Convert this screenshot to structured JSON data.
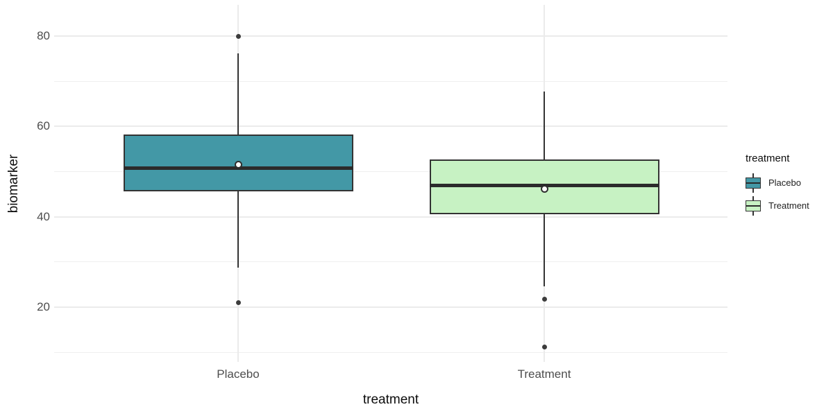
{
  "chart_data": {
    "type": "boxplot",
    "title": "",
    "xlabel": "treatment",
    "ylabel": "biomarker",
    "categories": [
      "Placebo",
      "Treatment"
    ],
    "y_axis": {
      "major_ticks": [
        20,
        40,
        60,
        80
      ],
      "minor_ticks": [
        10,
        30,
        50,
        70
      ],
      "range_shown": [
        8,
        87
      ],
      "grid": "on"
    },
    "series": [
      {
        "name": "Placebo",
        "fill": "#4398a6",
        "whisker_low": 28.7,
        "q1": 45.6,
        "median": 50.8,
        "mean": 51.5,
        "q3": 58.2,
        "whisker_high": 76.1,
        "outliers": [
          80,
          21
        ]
      },
      {
        "name": "Treatment",
        "fill": "#c7f2c3",
        "whisker_low": 24.6,
        "q1": 40.6,
        "median": 46.9,
        "mean": 46.1,
        "q3": 52.7,
        "whisker_high": 67.7,
        "outliers": [
          21.7,
          11.2
        ]
      }
    ],
    "legend": {
      "title": "treatment",
      "entries": [
        "Placebo",
        "Treatment"
      ],
      "position": "right"
    },
    "style_colors": {
      "background": "#ffffff",
      "grid_major": "#ebebeb",
      "grid_minor": "#efefef",
      "box_stroke": "#333333",
      "outlier": "#3c3c3c",
      "mean_fill": "#ffffff",
      "axis_text": "#4d4d4d",
      "axis_title": "#0d0d0d"
    }
  }
}
